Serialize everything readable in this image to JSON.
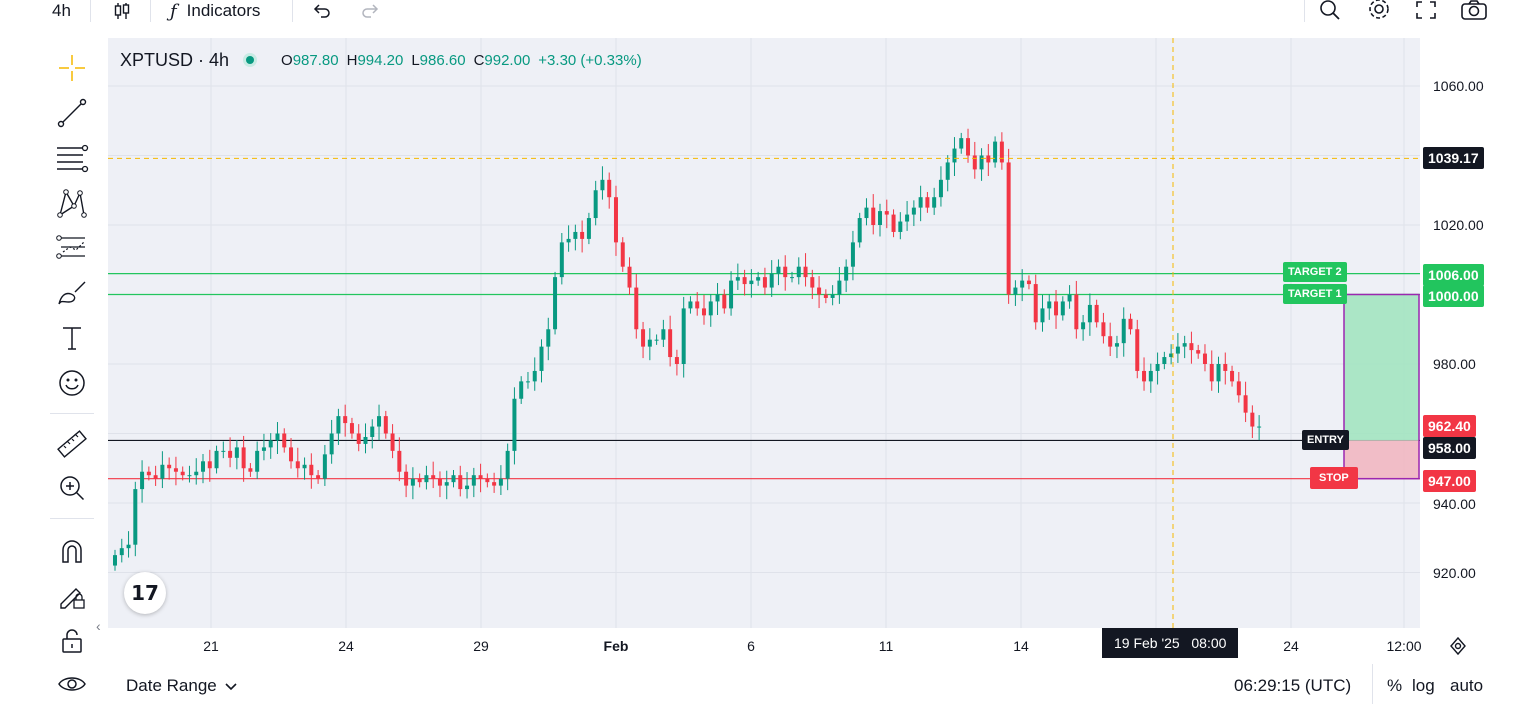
{
  "toolbar": {
    "interval": "4h",
    "indicators_label": "Indicators",
    "icons": [
      "candles-icon",
      "function-icon",
      "undo-icon",
      "redo-icon",
      "search-icon",
      "gear-icon",
      "fullscreen-icon",
      "camera-icon"
    ]
  },
  "legend": {
    "symbol": "XPTUSD · 4h",
    "o_label": "O",
    "o": "987.80",
    "h_label": "H",
    "h": "994.20",
    "l_label": "L",
    "l": "986.60",
    "c_label": "C",
    "c": "992.00",
    "change": "+3.30 (+0.33%)"
  },
  "left_tools": [
    "crosshair-icon",
    "trendline-icon",
    "fib-icon",
    "pattern-icon",
    "forecast-icon",
    "brush-icon",
    "text-icon",
    "emoji-icon",
    "ruler-icon",
    "zoom-in-icon",
    "magnet-icon",
    "lock-draw-icon",
    "lock-icon",
    "eye-icon"
  ],
  "price_axis": {
    "ticks": [
      "1060.00",
      "1020.00",
      "980.00",
      "940.00",
      "920.00"
    ],
    "crosshair_price": "1039.17",
    "target2_price": "1006.00",
    "target1_price": "1000.00",
    "current_price": "962.40",
    "entry_price": "958.00",
    "stop_price": "947.00"
  },
  "labels": {
    "target2": "TARGET 2",
    "target1": "TARGET 1",
    "entry": "ENTRY",
    "stop": "STOP"
  },
  "time_axis": {
    "ticks": [
      "21",
      "24",
      "29",
      "Feb",
      "6",
      "11",
      "14",
      "24",
      "12:00"
    ],
    "crosshair_time": "19 Feb '25   08:00"
  },
  "bottom": {
    "date_range": "Date Range",
    "clock": "06:29:15 (UTC)",
    "percent": "%",
    "log": "log",
    "auto": "auto"
  },
  "colors": {
    "up": "#089981",
    "down": "#f23645",
    "target_line": "#22c55e",
    "stop_line": "#f23645",
    "crosshair": "#f5b800",
    "position_profit": "#a3e4c1",
    "position_loss": "#f1b7c2",
    "position_border": "#9c27b0"
  },
  "chart_data": {
    "type": "candlestick",
    "symbol": "XPTUSD",
    "interval": "4h",
    "ylim": [
      910,
      1068
    ],
    "x_ticks": [
      "21",
      "24",
      "29",
      "Feb",
      "6",
      "11",
      "14",
      "24",
      "12:00"
    ],
    "closes": [
      925,
      927,
      928,
      944,
      949,
      948,
      947,
      951,
      950,
      949,
      948,
      948,
      949,
      952,
      950,
      955,
      955,
      953,
      956,
      950,
      949,
      955,
      956,
      958,
      960,
      956,
      952,
      950,
      951,
      948,
      947,
      954,
      960,
      965,
      963,
      960,
      957,
      959,
      962,
      965,
      960,
      955,
      949,
      945,
      947,
      946,
      948,
      947,
      945,
      946,
      948,
      944,
      945,
      948,
      947,
      946,
      945,
      947,
      955,
      970,
      975,
      975,
      978,
      985,
      990,
      1005,
      1015,
      1016,
      1018,
      1016,
      1022,
      1030,
      1033,
      1028,
      1015,
      1008,
      1002,
      990,
      985,
      987,
      987,
      990,
      982,
      980,
      996,
      998,
      996,
      994,
      998,
      1000,
      996,
      1004,
      1005,
      1003,
      1004,
      1005,
      1002,
      1006,
      1008,
      1005,
      1005,
      1008,
      1005,
      1002,
      1000,
      999,
      1000,
      1004,
      1008,
      1015,
      1022,
      1025,
      1020,
      1024,
      1023,
      1018,
      1021,
      1023,
      1025,
      1028,
      1025,
      1028,
      1033,
      1038,
      1042,
      1045,
      1040,
      1036,
      1040,
      1038,
      1044,
      1038,
      1000,
      1002,
      1004,
      1003,
      992,
      996,
      998,
      994,
      998,
      1000,
      990,
      992,
      997,
      992,
      988,
      985,
      986,
      993,
      990,
      978,
      975,
      978,
      980,
      982,
      983,
      985,
      986,
      984,
      983,
      980,
      975,
      980,
      978,
      975,
      971,
      966,
      962,
      962
    ]
  }
}
